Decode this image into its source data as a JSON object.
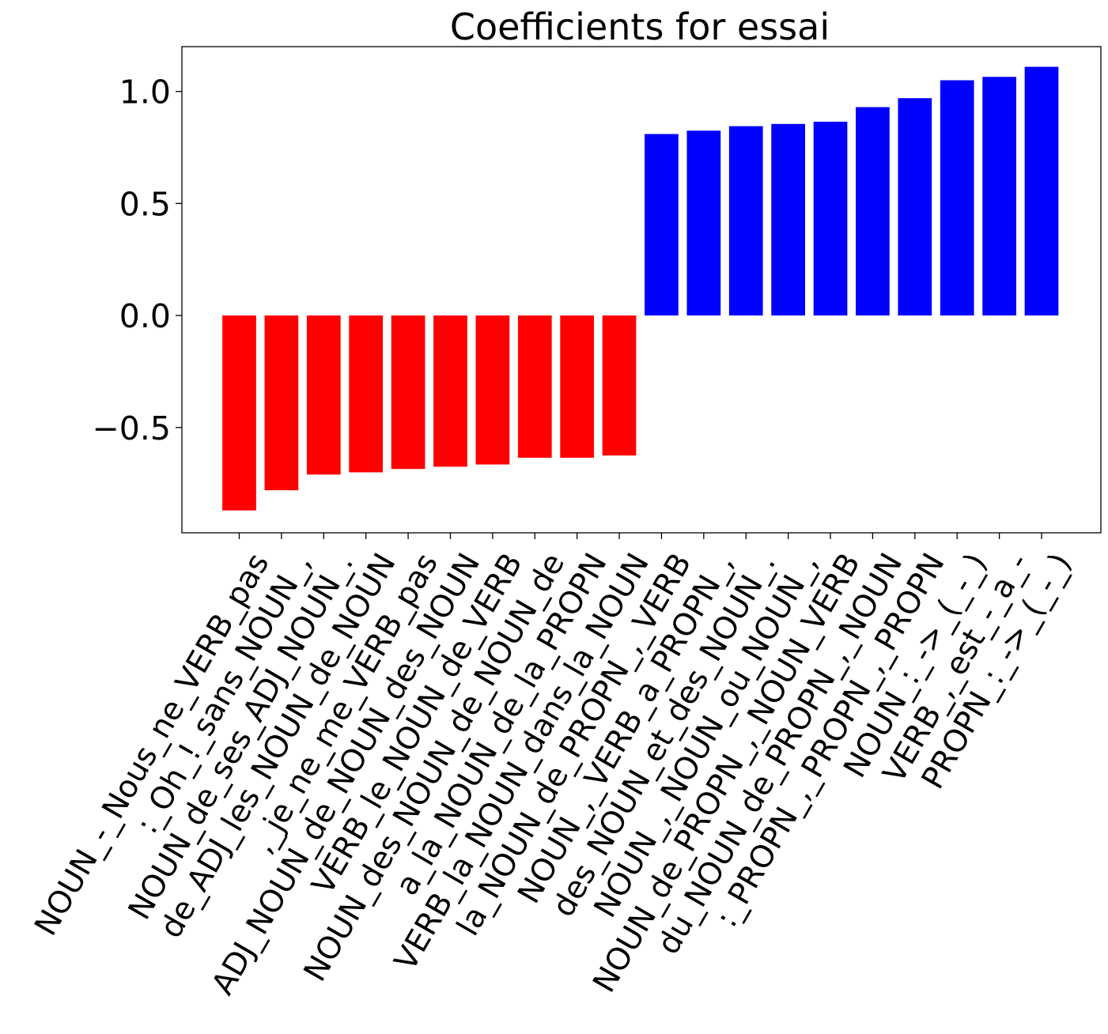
{
  "chart_data": {
    "type": "bar",
    "title": "Coefficients for essai",
    "xlabel": "",
    "ylabel": "",
    "ylim": [
      -0.97,
      1.2
    ],
    "yticks": [
      1.0,
      0.5,
      0.0,
      -0.5
    ],
    "ytick_labels": [
      "1.0",
      "0.5",
      "0.0",
      "−0.5"
    ],
    "grid": false,
    "legend": "none",
    "colors": {
      "negative": "#ff0000",
      "positive": "#0000ff"
    },
    "categories": [
      "NOUN_-_Nous_ne_VERB_pas",
      ":_Oh_!_sans_NOUN_,",
      "NOUN_de_ses_ADJ_NOUN_.",
      "de_ADJ_les_NOUN_de_NOUN",
      ",_je_ne_me_VERB_pas",
      "ADJ_NOUN_de_NOUN_des_NOUN",
      "VERB_le_NOUN_de_VERB",
      "NOUN_des_NOUN_de_NOUN_de",
      "a_la_NOUN_de_la_PROPN",
      "VERB_la_NOUN_dans_la_NOUN",
      "la_NOUN_de_PROPN_,_VERB",
      "NOUN_,_VERB_a_PROPN_,",
      "des_NOUN_et_des_NOUN_.",
      "NOUN_,_NOUN_ou_NOUN_,",
      "NOUN_de_PROPN_,_NOUN_VERB",
      "du_NOUN_de_PROPN_,_NOUN",
      ":_PROPN_,_PROPN_,_PROPN",
      "NOUN_:_->_(_-_)",
      "VERB_,_est_-_a_-",
      "PROPN_:_->_(_-_)"
    ],
    "values": [
      -0.87,
      -0.78,
      -0.71,
      -0.7,
      -0.685,
      -0.675,
      -0.665,
      -0.635,
      -0.635,
      -0.625,
      0.81,
      0.825,
      0.845,
      0.855,
      0.865,
      0.93,
      0.97,
      1.05,
      1.065,
      1.11
    ]
  }
}
